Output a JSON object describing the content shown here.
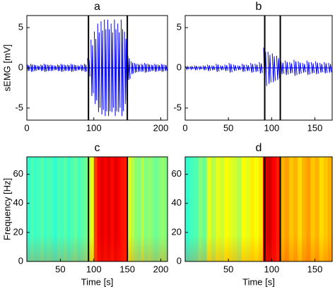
{
  "chart_data": [
    {
      "type": "signal",
      "title": "a",
      "ylabel": "sEMG [mV]",
      "color": "#0000ff",
      "xlim": [
        0,
        210
      ],
      "xticks": [
        0,
        100,
        200
      ],
      "ylim": [
        -6.5,
        6.5
      ],
      "yticks": [
        -5,
        0,
        5
      ],
      "x": [
        2.5,
        7.5,
        12.5,
        17.5,
        22.5,
        27.5,
        32.5,
        37.5,
        42.5,
        47.5,
        52.5,
        57.5,
        62.5,
        67.5,
        72.5,
        77.5,
        82.5,
        87.5,
        92.5,
        97.5,
        102.5,
        107.5,
        112.5,
        117.5,
        122.5,
        127.5,
        132.5,
        137.5,
        142.5,
        147.5,
        152.5,
        157.5,
        162.5,
        167.5,
        172.5,
        177.5,
        182.5,
        187.5,
        192.5,
        197.5,
        202.5,
        207.5
      ],
      "values": [
        0.4,
        0.5,
        0.4,
        0.3,
        0.4,
        0.5,
        0.4,
        0.4,
        0.3,
        0.4,
        0.5,
        0.4,
        0.4,
        0.5,
        0.4,
        0.3,
        0.4,
        0.5,
        1.2,
        3.5,
        4.5,
        5.5,
        5.8,
        6,
        6,
        5.5,
        6,
        5.5,
        6,
        4.5,
        1.5,
        0.8,
        0.6,
        0.5,
        0.5,
        0.6,
        0.5,
        0.4,
        0.5,
        0.4,
        0.5,
        0.4
      ],
      "markers": [
        92,
        150
      ]
    },
    {
      "type": "signal",
      "title": "b",
      "color": "#0000ff",
      "xlim": [
        0,
        170
      ],
      "xticks": [
        0,
        50,
        100,
        150
      ],
      "ylim": [
        -6.5,
        6.5
      ],
      "yticks": [
        -5,
        0,
        5
      ],
      "x": [
        2.5,
        7.5,
        12.5,
        17.5,
        22.5,
        27.5,
        32.5,
        37.5,
        42.5,
        47.5,
        52.5,
        57.5,
        62.5,
        67.5,
        72.5,
        77.5,
        82.5,
        87.5,
        92.5,
        97.5,
        102.5,
        107.5,
        112.5,
        117.5,
        122.5,
        127.5,
        132.5,
        137.5,
        142.5,
        147.5,
        152.5,
        157.5,
        162.5,
        167.5
      ],
      "values": [
        0.2,
        0.2,
        0.3,
        0.2,
        0.3,
        0.4,
        0.3,
        0.5,
        0.3,
        0.4,
        0.6,
        0.4,
        0.3,
        0.5,
        0.4,
        0.6,
        0.5,
        0.7,
        2.5,
        2.0,
        1.8,
        1.5,
        0.8,
        0.9,
        0.7,
        1.0,
        0.8,
        0.6,
        0.9,
        0.7,
        0.8,
        0.6,
        0.7,
        0.6
      ],
      "markers": [
        92,
        110
      ]
    },
    {
      "type": "heatmap",
      "title": "c",
      "ylabel": "Frequency [Hz]",
      "xlabel": "Time [s]",
      "colormap": "jet",
      "xlim": [
        0,
        210
      ],
      "xticks": [
        50,
        100,
        150,
        200
      ],
      "ylim": [
        0,
        72
      ],
      "yticks": [
        0,
        20,
        40,
        60
      ],
      "x": [
        2.5,
        7.5,
        12.5,
        17.5,
        22.5,
        27.5,
        32.5,
        37.5,
        42.5,
        47.5,
        52.5,
        57.5,
        62.5,
        67.5,
        72.5,
        77.5,
        82.5,
        87.5,
        92.5,
        97.5,
        102.5,
        107.5,
        112.5,
        117.5,
        122.5,
        127.5,
        132.5,
        137.5,
        142.5,
        147.5,
        152.5,
        157.5,
        162.5,
        167.5,
        172.5,
        177.5,
        182.5,
        187.5,
        192.5,
        197.5,
        202.5,
        207.5
      ],
      "values": [
        0.42,
        0.45,
        0.43,
        0.44,
        0.46,
        0.43,
        0.45,
        0.44,
        0.42,
        0.45,
        0.44,
        0.46,
        0.43,
        0.45,
        0.47,
        0.44,
        0.46,
        0.48,
        0.55,
        0.6,
        0.82,
        0.88,
        0.9,
        0.88,
        0.9,
        0.87,
        0.9,
        0.88,
        0.86,
        0.85,
        0.6,
        0.55,
        0.52,
        0.5,
        0.55,
        0.5,
        0.52,
        0.5,
        0.48,
        0.5,
        0.52,
        0.5
      ],
      "markers": [
        92,
        150
      ]
    },
    {
      "type": "heatmap",
      "title": "d",
      "xlabel": "Time [s]",
      "colormap": "jet",
      "xlim": [
        0,
        170
      ],
      "xticks": [
        50,
        100,
        150
      ],
      "ylim": [
        0,
        72
      ],
      "yticks": [
        0,
        20,
        40,
        60
      ],
      "x": [
        2.5,
        7.5,
        12.5,
        17.5,
        22.5,
        27.5,
        32.5,
        37.5,
        42.5,
        47.5,
        52.5,
        57.5,
        62.5,
        67.5,
        72.5,
        77.5,
        82.5,
        87.5,
        92.5,
        97.5,
        102.5,
        107.5,
        112.5,
        117.5,
        122.5,
        127.5,
        132.5,
        137.5,
        142.5,
        147.5,
        152.5,
        157.5,
        162.5,
        167.5
      ],
      "values": [
        0.42,
        0.44,
        0.45,
        0.5,
        0.48,
        0.6,
        0.55,
        0.6,
        0.58,
        0.62,
        0.6,
        0.58,
        0.55,
        0.62,
        0.6,
        0.64,
        0.62,
        0.65,
        0.9,
        0.92,
        0.88,
        0.85,
        0.7,
        0.72,
        0.68,
        0.7,
        0.66,
        0.7,
        0.72,
        0.68,
        0.7,
        0.66,
        0.68,
        0.7
      ],
      "markers": [
        92,
        110
      ]
    }
  ]
}
